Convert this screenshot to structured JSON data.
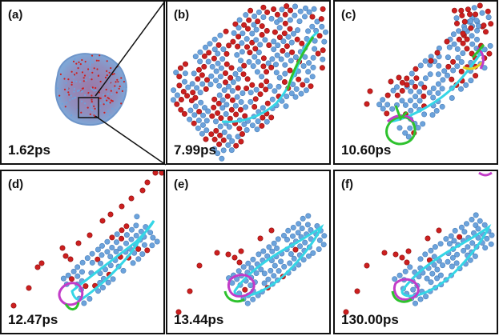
{
  "figure": {
    "panels": [
      {
        "tag": "(a)",
        "time": "1.62ps"
      },
      {
        "tag": "(b)",
        "time": "7.99ps"
      },
      {
        "tag": "(c)",
        "time": "10.60ps"
      },
      {
        "tag": "(d)",
        "time": "12.47ps"
      },
      {
        "tag": "(e)",
        "time": "13.44ps"
      },
      {
        "tag": "(f)",
        "time": "130.00ps"
      }
    ]
  },
  "colors": {
    "atom_red": "#cc1f1f",
    "atom_blue": "#6ca3dc",
    "dislocation_cyan": "#35d6e6",
    "dislocation_green": "#2ec22e",
    "dislocation_magenta": "#c23cc8",
    "dislocation_yellow": "#e6d21e"
  }
}
